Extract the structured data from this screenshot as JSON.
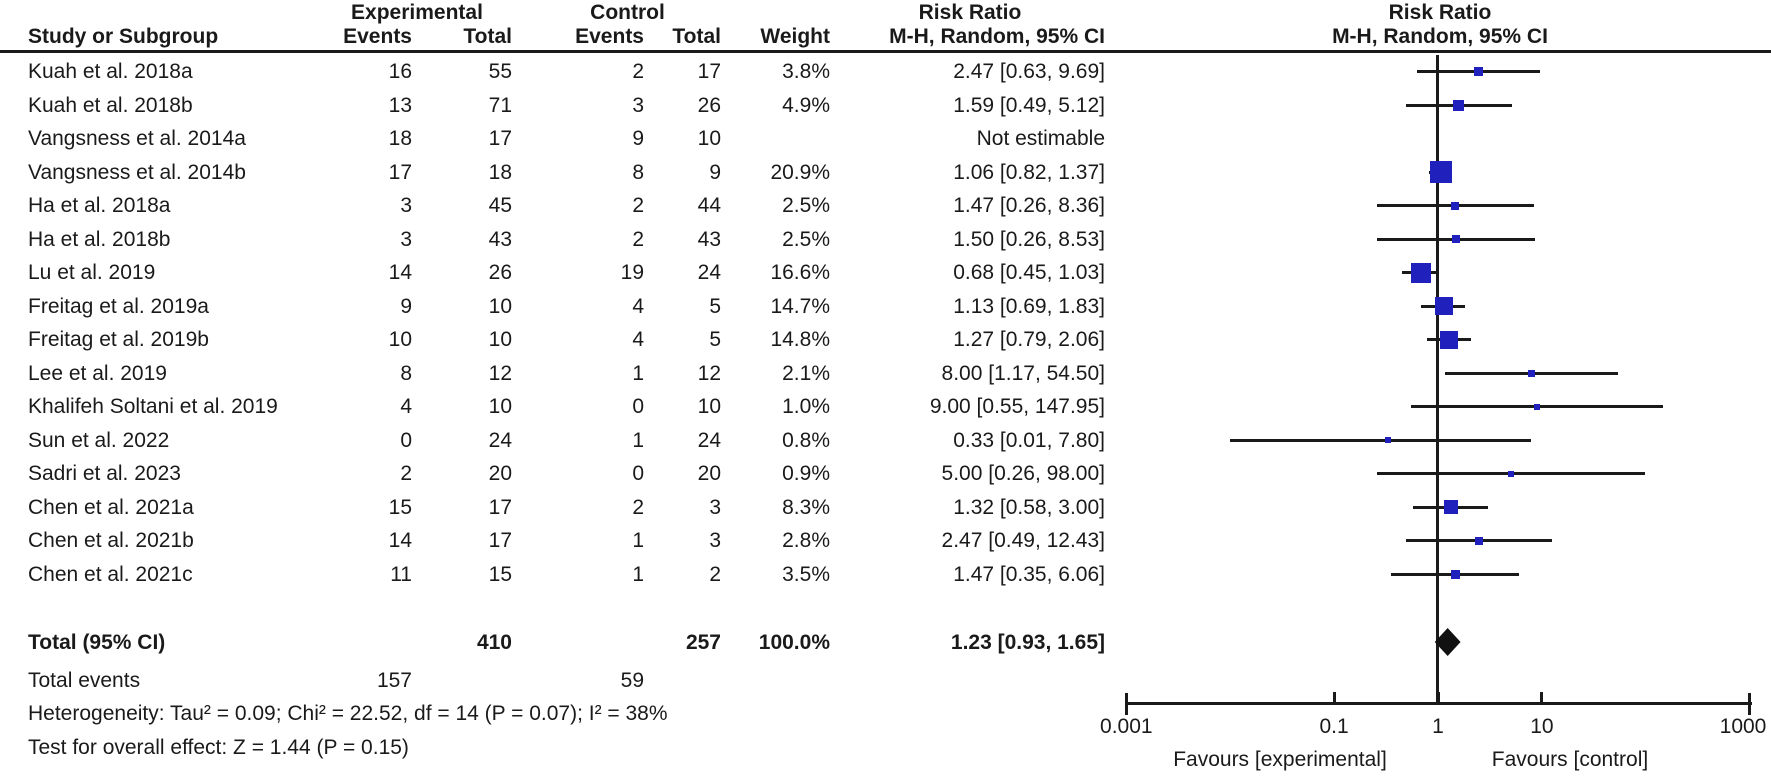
{
  "figure": {
    "background": "#ffffff",
    "text_color": "#1a1a1a",
    "marker_color": "#2020bd",
    "line_color": "#1a1a1a"
  },
  "header": {
    "study": "Study or Subgroup",
    "group_experimental": "Experimental",
    "group_control": "Control",
    "exp_events": "Events",
    "exp_total": "Total",
    "ctrl_events": "Events",
    "ctrl_total": "Total",
    "weight": "Weight",
    "effect_title": "Risk Ratio",
    "effect_subtitle": "M-H, Random, 95% CI",
    "plot_title": "Risk Ratio",
    "plot_subtitle": "M-H, Random, 95% CI"
  },
  "studies": [
    {
      "name": "Kuah et al. 2018a",
      "exp_events": "16",
      "exp_total": "55",
      "ctrl_events": "2",
      "ctrl_total": "17",
      "weight": "3.8%",
      "rr_ci": "2.47 [0.63, 9.69]",
      "rr": 2.47,
      "lo": 0.63,
      "hi": 9.69,
      "weight_pct": 3.8
    },
    {
      "name": "Kuah et al. 2018b",
      "exp_events": "13",
      "exp_total": "71",
      "ctrl_events": "3",
      "ctrl_total": "26",
      "weight": "4.9%",
      "rr_ci": "1.59 [0.49, 5.12]",
      "rr": 1.59,
      "lo": 0.49,
      "hi": 5.12,
      "weight_pct": 4.9
    },
    {
      "name": "Vangsness et al. 2014a",
      "exp_events": "18",
      "exp_total": "17",
      "ctrl_events": "9",
      "ctrl_total": "10",
      "weight": "",
      "rr_ci": "Not estimable",
      "rr": null,
      "lo": null,
      "hi": null,
      "weight_pct": null
    },
    {
      "name": "Vangsness et al. 2014b",
      "exp_events": "17",
      "exp_total": "18",
      "ctrl_events": "8",
      "ctrl_total": "9",
      "weight": "20.9%",
      "rr_ci": "1.06 [0.82, 1.37]",
      "rr": 1.06,
      "lo": 0.82,
      "hi": 1.37,
      "weight_pct": 20.9
    },
    {
      "name": "Ha et al. 2018a",
      "exp_events": "3",
      "exp_total": "45",
      "ctrl_events": "2",
      "ctrl_total": "44",
      "weight": "2.5%",
      "rr_ci": "1.47 [0.26, 8.36]",
      "rr": 1.47,
      "lo": 0.26,
      "hi": 8.36,
      "weight_pct": 2.5
    },
    {
      "name": "Ha et al. 2018b",
      "exp_events": "3",
      "exp_total": "43",
      "ctrl_events": "2",
      "ctrl_total": "43",
      "weight": "2.5%",
      "rr_ci": "1.50 [0.26, 8.53]",
      "rr": 1.5,
      "lo": 0.26,
      "hi": 8.53,
      "weight_pct": 2.5
    },
    {
      "name": "Lu et al. 2019",
      "exp_events": "14",
      "exp_total": "26",
      "ctrl_events": "19",
      "ctrl_total": "24",
      "weight": "16.6%",
      "rr_ci": "0.68 [0.45, 1.03]",
      "rr": 0.68,
      "lo": 0.45,
      "hi": 1.03,
      "weight_pct": 16.6
    },
    {
      "name": "Freitag et al. 2019a",
      "exp_events": "9",
      "exp_total": "10",
      "ctrl_events": "4",
      "ctrl_total": "5",
      "weight": "14.7%",
      "rr_ci": "1.13 [0.69, 1.83]",
      "rr": 1.13,
      "lo": 0.69,
      "hi": 1.83,
      "weight_pct": 14.7
    },
    {
      "name": "Freitag et al. 2019b",
      "exp_events": "10",
      "exp_total": "10",
      "ctrl_events": "4",
      "ctrl_total": "5",
      "weight": "14.8%",
      "rr_ci": "1.27 [0.79, 2.06]",
      "rr": 1.27,
      "lo": 0.79,
      "hi": 2.06,
      "weight_pct": 14.8
    },
    {
      "name": "Lee et al. 2019",
      "exp_events": "8",
      "exp_total": "12",
      "ctrl_events": "1",
      "ctrl_total": "12",
      "weight": "2.1%",
      "rr_ci": "8.00 [1.17, 54.50]",
      "rr": 8.0,
      "lo": 1.17,
      "hi": 54.5,
      "weight_pct": 2.1
    },
    {
      "name": "Khalifeh Soltani et al. 2019",
      "exp_events": "4",
      "exp_total": "10",
      "ctrl_events": "0",
      "ctrl_total": "10",
      "weight": "1.0%",
      "rr_ci": "9.00 [0.55, 147.95]",
      "rr": 9.0,
      "lo": 0.55,
      "hi": 147.95,
      "weight_pct": 1.0
    },
    {
      "name": "Sun et al. 2022",
      "exp_events": "0",
      "exp_total": "24",
      "ctrl_events": "1",
      "ctrl_total": "24",
      "weight": "0.8%",
      "rr_ci": "0.33 [0.01, 7.80]",
      "rr": 0.33,
      "lo": 0.01,
      "hi": 7.8,
      "weight_pct": 0.8
    },
    {
      "name": "Sadri et al. 2023",
      "exp_events": "2",
      "exp_total": "20",
      "ctrl_events": "0",
      "ctrl_total": "20",
      "weight": "0.9%",
      "rr_ci": "5.00 [0.26, 98.00]",
      "rr": 5.0,
      "lo": 0.26,
      "hi": 98.0,
      "weight_pct": 0.9
    },
    {
      "name": "Chen et al. 2021a",
      "exp_events": "15",
      "exp_total": "17",
      "ctrl_events": "2",
      "ctrl_total": "3",
      "weight": "8.3%",
      "rr_ci": "1.32 [0.58, 3.00]",
      "rr": 1.32,
      "lo": 0.58,
      "hi": 3.0,
      "weight_pct": 8.3
    },
    {
      "name": "Chen et al. 2021b",
      "exp_events": "14",
      "exp_total": "17",
      "ctrl_events": "1",
      "ctrl_total": "3",
      "weight": "2.8%",
      "rr_ci": "2.47 [0.49, 12.43]",
      "rr": 2.47,
      "lo": 0.49,
      "hi": 12.43,
      "weight_pct": 2.8
    },
    {
      "name": "Chen et al. 2021c",
      "exp_events": "11",
      "exp_total": "15",
      "ctrl_events": "1",
      "ctrl_total": "2",
      "weight": "3.5%",
      "rr_ci": "1.47 [0.35, 6.06]",
      "rr": 1.47,
      "lo": 0.35,
      "hi": 6.06,
      "weight_pct": 3.5
    }
  ],
  "total_row": {
    "label": "Total (95% CI)",
    "exp_total": "410",
    "ctrl_total": "257",
    "weight": "100.0%",
    "rr_ci": "1.23 [0.93, 1.65]",
    "rr": 1.23,
    "lo": 0.93,
    "hi": 1.65
  },
  "total_events": {
    "label": "Total events",
    "exp": "157",
    "ctrl": "59"
  },
  "footnotes": {
    "heterogeneity": "Heterogeneity: Tau² = 0.09; Chi² = 22.52, df = 14 (P = 0.07); I² = 38%",
    "overall_effect": "Test for overall effect: Z = 1.44 (P = 0.15)"
  },
  "axis": {
    "tick_labels": [
      "0.001",
      "0.1",
      "1",
      "10",
      "1000"
    ],
    "tick_values": [
      0.001,
      0.1,
      1,
      10,
      1000
    ],
    "favours_left": "Favours [experimental]",
    "favours_right": "Favours [control]"
  },
  "chart_data": {
    "type": "scatter",
    "subtype": "forest_plot",
    "title": "Risk Ratio",
    "effect_measure": "M-H, Random, 95% CI",
    "x_scale": "log",
    "x_range": [
      0.001,
      1000
    ],
    "x_ticks": [
      0.001,
      0.1,
      1,
      10,
      1000
    ],
    "x_axis_labels": {
      "left": "Favours [experimental]",
      "right": "Favours [control]"
    },
    "points": [
      {
        "study": "Kuah et al. 2018a",
        "rr": 2.47,
        "ci": [
          0.63,
          9.69
        ],
        "weight_pct": 3.8
      },
      {
        "study": "Kuah et al. 2018b",
        "rr": 1.59,
        "ci": [
          0.49,
          5.12
        ],
        "weight_pct": 4.9
      },
      {
        "study": "Vangsness et al. 2014a",
        "rr": null,
        "ci": null,
        "weight_pct": null,
        "note": "Not estimable"
      },
      {
        "study": "Vangsness et al. 2014b",
        "rr": 1.06,
        "ci": [
          0.82,
          1.37
        ],
        "weight_pct": 20.9
      },
      {
        "study": "Ha et al. 2018a",
        "rr": 1.47,
        "ci": [
          0.26,
          8.36
        ],
        "weight_pct": 2.5
      },
      {
        "study": "Ha et al. 2018b",
        "rr": 1.5,
        "ci": [
          0.26,
          8.53
        ],
        "weight_pct": 2.5
      },
      {
        "study": "Lu et al. 2019",
        "rr": 0.68,
        "ci": [
          0.45,
          1.03
        ],
        "weight_pct": 16.6
      },
      {
        "study": "Freitag et al. 2019a",
        "rr": 1.13,
        "ci": [
          0.69,
          1.83
        ],
        "weight_pct": 14.7
      },
      {
        "study": "Freitag et al. 2019b",
        "rr": 1.27,
        "ci": [
          0.79,
          2.06
        ],
        "weight_pct": 14.8
      },
      {
        "study": "Lee et al. 2019",
        "rr": 8.0,
        "ci": [
          1.17,
          54.5
        ],
        "weight_pct": 2.1
      },
      {
        "study": "Khalifeh Soltani et al. 2019",
        "rr": 9.0,
        "ci": [
          0.55,
          147.95
        ],
        "weight_pct": 1.0
      },
      {
        "study": "Sun et al. 2022",
        "rr": 0.33,
        "ci": [
          0.01,
          7.8
        ],
        "weight_pct": 0.8
      },
      {
        "study": "Sadri et al. 2023",
        "rr": 5.0,
        "ci": [
          0.26,
          98.0
        ],
        "weight_pct": 0.9
      },
      {
        "study": "Chen et al. 2021a",
        "rr": 1.32,
        "ci": [
          0.58,
          3.0
        ],
        "weight_pct": 8.3
      },
      {
        "study": "Chen et al. 2021b",
        "rr": 2.47,
        "ci": [
          0.49,
          12.43
        ],
        "weight_pct": 2.8
      },
      {
        "study": "Chen et al. 2021c",
        "rr": 1.47,
        "ci": [
          0.35,
          6.06
        ],
        "weight_pct": 3.5
      }
    ],
    "overall": {
      "label": "Total (95% CI)",
      "rr": 1.23,
      "ci": [
        0.93,
        1.65
      ],
      "weight_pct": 100.0
    },
    "heterogeneity": {
      "tau2": 0.09,
      "chi2": 22.52,
      "df": 14,
      "p": 0.07,
      "i2_pct": 38
    },
    "overall_effect_test": {
      "z": 1.44,
      "p": 0.15
    },
    "legend_position": "none",
    "grid": false
  }
}
